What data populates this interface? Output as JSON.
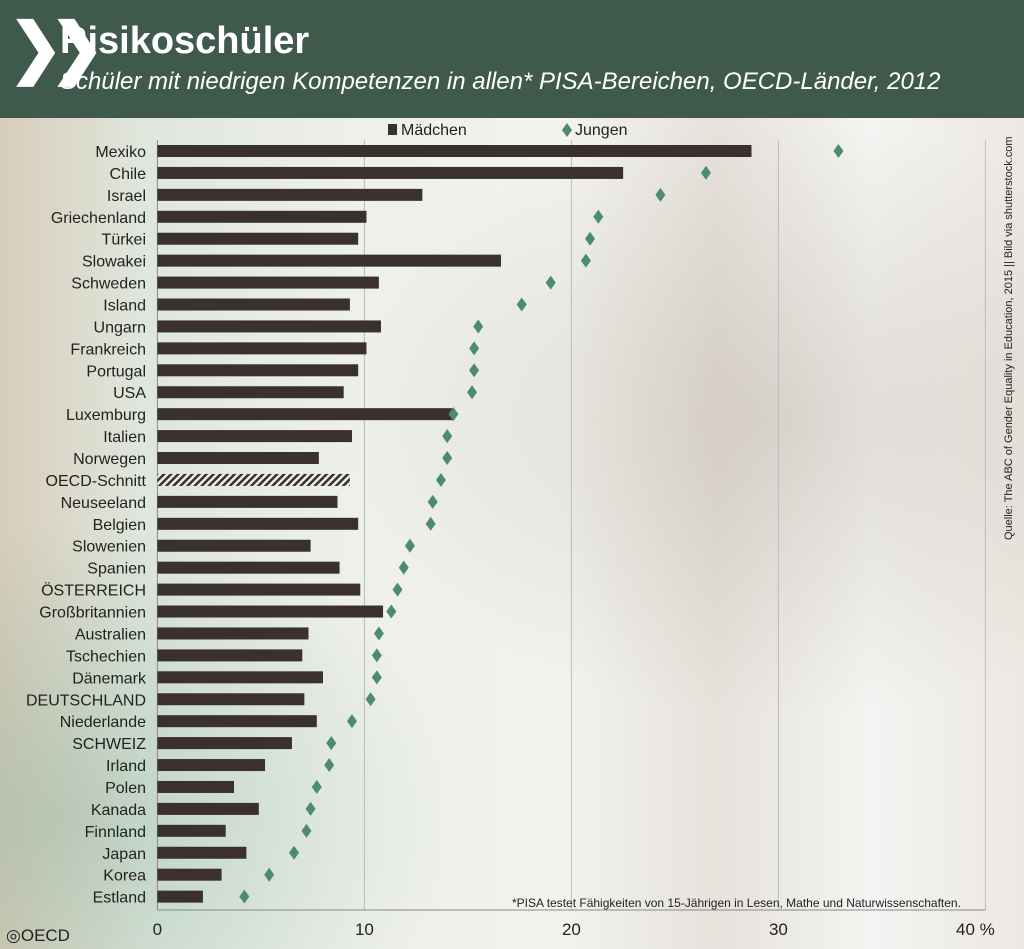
{
  "header": {
    "title": "Risikoschüler",
    "subtitle": "Schüler mit niedrigen Kompetenzen in allen* PISA-Bereichen, OECD-Länder, 2012"
  },
  "footnote": "*PISA testet Fähigkeiten von 15-Jährigen in Lesen, Mathe und Naturwissenschaften.",
  "source": "Quelle: The ABC of Gender Equality in Education, 2015 || Bild via shutterstock.com",
  "logo": "OECD",
  "colors": {
    "header": "#3f5a4d",
    "bar": "#3a3030",
    "diamond": "#4d8a72"
  },
  "chart_data": {
    "type": "bar",
    "title": "Risikoschüler",
    "xlabel": "%",
    "ylabel": "",
    "xlim": [
      0,
      40
    ],
    "ticks": [
      "0",
      "10",
      "20",
      "30",
      "40 %"
    ],
    "grid": true,
    "legend_position": "top",
    "categories": [
      "Mexiko",
      "Chile",
      "Israel",
      "Griechenland",
      "Türkei",
      "Slowakei",
      "Schweden",
      "Island",
      "Ungarn",
      "Frankreich",
      "Portugal",
      "USA",
      "Luxemburg",
      "Italien",
      "Norwegen",
      "OECD-Schnitt",
      "Neuseeland",
      "Belgien",
      "Slowenien",
      "Spanien",
      "ÖSTERREICH",
      "Großbritannien",
      "Australien",
      "Tschechien",
      "Dänemark",
      "DEUTSCHLAND",
      "Niederlande",
      "SCHWEIZ",
      "Irland",
      "Polen",
      "Kanada",
      "Finnland",
      "Japan",
      "Korea",
      "Estland"
    ],
    "series": [
      {
        "name": "Mädchen",
        "type": "bar",
        "values": [
          28.7,
          22.5,
          12.8,
          10.1,
          9.7,
          16.6,
          10.7,
          9.3,
          10.8,
          10.1,
          9.7,
          9.0,
          14.3,
          9.4,
          7.8,
          9.3,
          8.7,
          9.7,
          7.4,
          8.8,
          9.8,
          10.9,
          7.3,
          7.0,
          8.0,
          7.1,
          7.7,
          6.5,
          5.2,
          3.7,
          4.9,
          3.3,
          4.3,
          3.1,
          2.2
        ]
      },
      {
        "name": "Jungen",
        "type": "scatter",
        "values": [
          32.9,
          26.5,
          24.3,
          21.3,
          20.9,
          20.7,
          19.0,
          17.6,
          15.5,
          15.3,
          15.3,
          15.2,
          14.3,
          14.0,
          14.0,
          13.7,
          13.3,
          13.2,
          12.2,
          11.9,
          11.6,
          11.3,
          10.7,
          10.6,
          10.6,
          10.3,
          9.4,
          8.4,
          8.3,
          7.7,
          7.4,
          7.2,
          6.6,
          5.4,
          4.2
        ]
      }
    ]
  }
}
